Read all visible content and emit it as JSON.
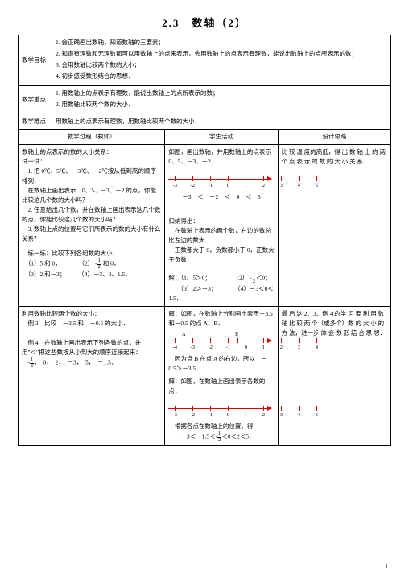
{
  "title": "2.3　数轴（2）",
  "rows": {
    "r1": {
      "label": "教学目标",
      "items": [
        "1.  会正确画出数轴，知道数轴的三要素；",
        "2.  知道有理数和无理数都可以用数轴上的点来表示，会用数轴上的点表示有理数，能说出数轴上的点所表示的数；",
        "3.  会用数轴比较两个数的大小；",
        "4.  初步感受数形结合的思想．"
      ]
    },
    "r2": {
      "label": "教学重点",
      "items": [
        "1.  用数轴上的点表示有理数，能说出数轴上的点所表示的数；",
        "2.  用数轴比较两个数的大小．"
      ]
    },
    "r3": {
      "label": "教学难点",
      "text": "用数轴上的点表示有理数，用数轴比较两个数的大小．"
    }
  },
  "headerRow": {
    "c1": "教学过程（教师）",
    "c2": "学生活动",
    "c3": "设计思路"
  },
  "block1": {
    "teacher": {
      "t0": "数轴上的点表示的数的大小关系：",
      "t1": "试一试：",
      "t2_a": "1.  把 0℃、5℃、－3℃、－2℃按从低到高的顺序排列．",
      "t2_b": "在数轴上画出表示　0、5、－3、－2 的点，你能比较这几个数的大小吗？",
      "t3": "2.  任意给出几个数，并在数轴上画出表示这几个数的点，你能比较这几个数的大小吗？",
      "t4": "3.  数轴上点的位置与它们所表示的数的大小有什么关系？",
      "t5": "练一练：比较下列各组数的大小．",
      "p1a": "（1）5 和 0；",
      "p1b": "（2）",
      "p1c": "和 0；",
      "p2a": "（3）2 和－3；",
      "p2b": "（4）－3、0、1.5．"
    },
    "student": {
      "s0": "如图，画出数轴，并用数轴上的点表示　0、5、－3、－2．",
      "nl1": {
        "ticks": [
          -3,
          -2,
          -1,
          0,
          1,
          2,
          3,
          4,
          5
        ],
        "labels": [
          -3,
          -2,
          -1,
          0,
          1,
          2,
          3,
          4,
          5
        ]
      },
      "s1": "－3　＜　－2　＜　0　＜　5",
      "s2": "归纳得出：",
      "s3": "在数轴上表示的两个数，右边的数总比左边的数大．",
      "s4": "正数都大于 0，负数都小于 0，正数大于负数．",
      "a1a": "解：（1）5＞0；",
      "a1b": "（2）",
      "a1c": "＜0；",
      "a2a": "（3）2＞－3；",
      "a2b": "（4）－3＜0＜1.5．"
    },
    "design": "比 较 温 度的高低，得 出 数 轴 上 的 两 个 点 表 示 的 数 的 大 小 关 系．"
  },
  "block2": {
    "teacher": {
      "t0": "利用数轴比较两个数的大小：",
      "t1_a": "例 3　比较　－3.5 和　－0.5 的大小．",
      "t2": "例 4　在数轴上画出表示下列各数的点，并用\"＜\"把这些数按从小到大的顺序连接起来：",
      "t3_a": "，　0，　2，　－3，　5，　－1.5．"
    },
    "student": {
      "s0": "解：如图，在数轴上分别画出表示－3.5 和－0.5 的点 A、B．",
      "nl2": {
        "ticks": [
          -4,
          -3,
          -2,
          -1,
          0,
          1,
          2,
          3,
          4
        ],
        "top": [
          {
            "x": -3.5,
            "t": "A"
          },
          {
            "x": -0.5,
            "t": "B"
          }
        ]
      },
      "s1": "因为点 B 在点 A 的右边，所以　－0.5＞－3.5．",
      "s2": "解：如图，在数轴上画出表示各数的点：",
      "nl3": {
        "ticks": [
          -3,
          -2,
          -1,
          0,
          1,
          2,
          3,
          4,
          5
        ]
      },
      "s3": "根据各点在数轴上的位置，得",
      "s4_a": "－3＜－1.5＜",
      "s4_b": "＜0＜2＜5．"
    },
    "design": "最 后 这 2、3、例 4 的学 习 要 利 用 数 轴 比 较 两 个（或多个）数 的 大 小 的 方 法，进一步 体 会 数 形 结 合 思 想．"
  },
  "frac_neg_half": {
    "n": "1",
    "d": "2"
  },
  "pageNum": "1"
}
